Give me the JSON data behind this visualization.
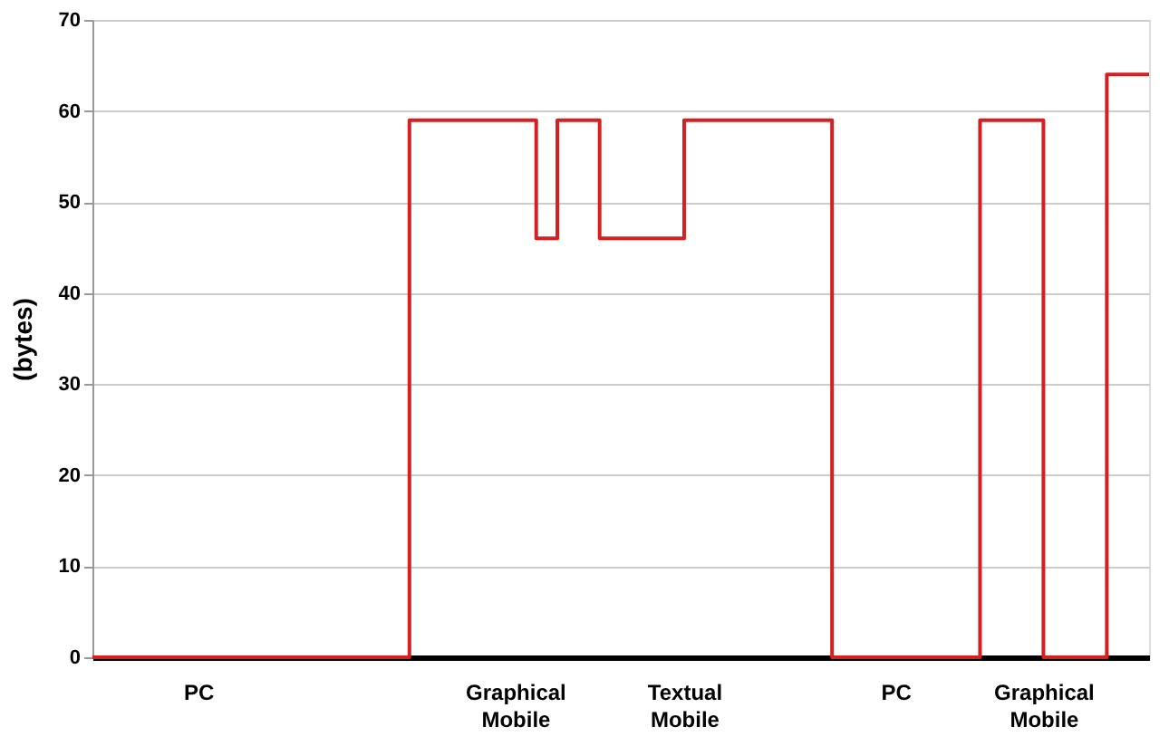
{
  "chart_data": {
    "type": "step",
    "ylabel": "(bytes)",
    "categories": [
      null,
      null,
      null,
      null,
      null,
      "PC",
      null,
      null,
      null,
      null,
      null,
      null,
      null,
      null,
      null,
      null,
      null,
      null,
      null,
      null,
      "Graphical Mobile",
      null,
      null,
      null,
      null,
      null,
      null,
      null,
      "Textual Mobile",
      null,
      null,
      null,
      null,
      null,
      null,
      null,
      null,
      null,
      "PC",
      null,
      null,
      null,
      null,
      null,
      null,
      "Graphical Mobile",
      null,
      null,
      null,
      null,
      null
    ],
    "series": [
      {
        "color": "#d42020",
        "values": [
          0,
          0,
          0,
          0,
          0,
          0,
          0,
          0,
          0,
          0,
          0,
          0,
          0,
          0,
          0,
          59,
          59,
          59,
          59,
          59,
          59,
          46,
          59,
          59,
          46,
          46,
          46,
          46,
          59,
          59,
          59,
          59,
          59,
          59,
          59,
          0,
          0,
          0,
          0,
          0,
          0,
          0,
          59,
          59,
          59,
          0,
          0,
          0,
          64,
          64,
          64
        ]
      }
    ],
    "ylim": [
      0,
      70
    ],
    "yticks": [
      0,
      10,
      20,
      30,
      40,
      50,
      60,
      70
    ],
    "grid": "y",
    "tick_labels": "xy"
  }
}
